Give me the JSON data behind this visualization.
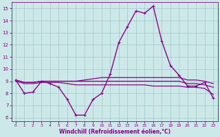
{
  "xlabel": "Windchill (Refroidissement éolien,°C)",
  "background_color": "#cce8e8",
  "grid_color": "#aacccc",
  "line_color": "#880088",
  "xlim": [
    -0.5,
    23.5
  ],
  "ylim": [
    5.7,
    15.5
  ],
  "yticks": [
    6,
    7,
    8,
    9,
    10,
    11,
    12,
    13,
    14,
    15
  ],
  "xticks": [
    0,
    1,
    2,
    3,
    4,
    5,
    6,
    7,
    8,
    9,
    10,
    11,
    12,
    13,
    14,
    15,
    16,
    17,
    18,
    19,
    20,
    21,
    22,
    23
  ],
  "series": [
    {
      "y": [
        9.1,
        8.0,
        8.1,
        9.0,
        8.8,
        8.5,
        7.5,
        6.2,
        6.2,
        7.5,
        8.0,
        9.6,
        12.2,
        13.5,
        14.8,
        14.6,
        15.2,
        12.3,
        10.3,
        9.5,
        8.6,
        8.6,
        8.9,
        7.6
      ],
      "marker": true,
      "linewidth": 1.0
    },
    {
      "y": [
        9.1,
        8.9,
        8.9,
        9.0,
        9.0,
        9.0,
        9.0,
        9.0,
        9.1,
        9.2,
        9.3,
        9.3,
        9.3,
        9.3,
        9.3,
        9.3,
        9.3,
        9.3,
        9.3,
        9.3,
        9.1,
        9.1,
        9.0,
        8.8
      ],
      "marker": false,
      "linewidth": 0.9
    },
    {
      "y": [
        9.1,
        8.9,
        8.9,
        9.0,
        9.0,
        9.0,
        9.0,
        9.0,
        9.0,
        9.0,
        9.0,
        9.0,
        9.0,
        9.0,
        9.0,
        9.0,
        9.0,
        9.0,
        9.0,
        9.0,
        8.8,
        8.8,
        8.7,
        8.5
      ],
      "marker": false,
      "linewidth": 0.9
    },
    {
      "y": [
        9.0,
        8.8,
        8.8,
        8.9,
        8.9,
        8.9,
        8.8,
        8.7,
        8.7,
        8.7,
        8.7,
        8.7,
        8.7,
        8.7,
        8.7,
        8.7,
        8.6,
        8.6,
        8.6,
        8.6,
        8.5,
        8.5,
        8.4,
        7.9
      ],
      "marker": false,
      "linewidth": 0.9
    }
  ]
}
